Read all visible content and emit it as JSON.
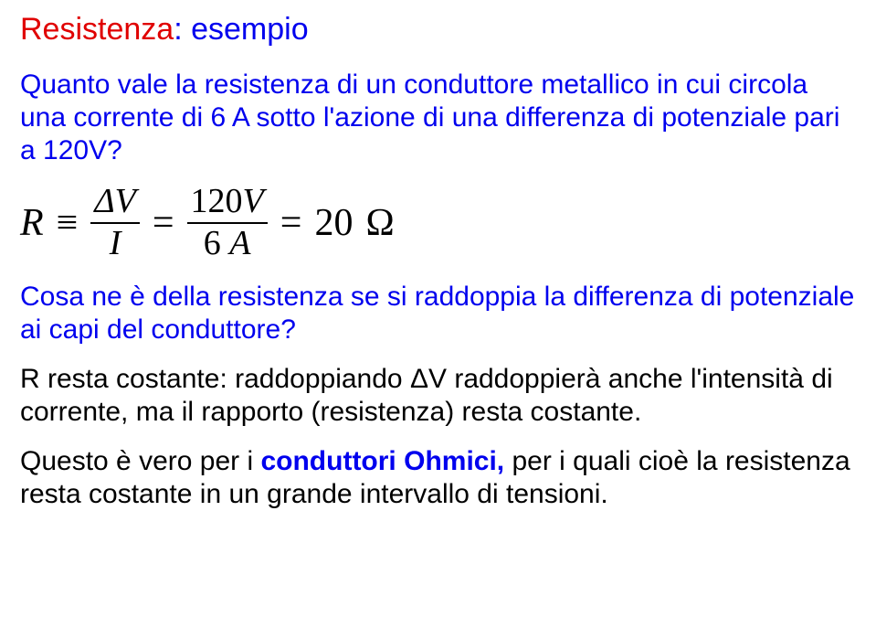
{
  "title": {
    "word1": "Resistenza",
    "colon": ": ",
    "word2": "esempio"
  },
  "p1": "Quanto vale la resistenza di un conduttore metallico in cui circola una corrente di 6 A sotto l'azione di una differenza di potenziale pari a 120V?",
  "formula": {
    "R": "R",
    "equiv": "≡",
    "dV": "ΔV",
    "I": "I",
    "eq1": "=",
    "num2_val": "120",
    "num2_unit": "V",
    "den2_val": "6",
    "den2_unit": "A",
    "eq2": "=",
    "result_val": "20",
    "result_unit": "Ω"
  },
  "p2": "Cosa ne è della resistenza se si raddoppia la differenza di potenziale ai capi del conduttore?",
  "p3": "R resta costante: raddoppiando ΔV raddoppierà anche l'intensità di corrente, ma il rapporto (resistenza) resta costante.",
  "p4_a": "Questo è vero per i ",
  "p4_b": "conduttori Ohmici,",
  "p4_c": " per i quali cioè la resistenza resta costante in un grande intervallo di tensioni."
}
